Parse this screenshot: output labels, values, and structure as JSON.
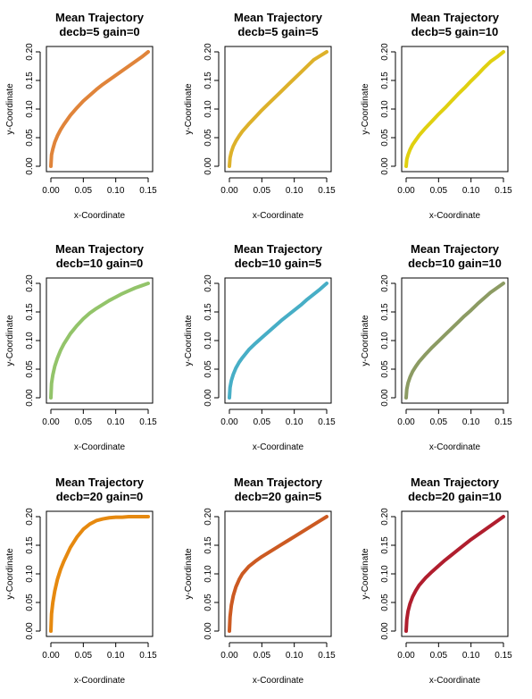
{
  "chart_data": [
    {
      "type": "line",
      "title_line1": "Mean Trajectory",
      "title_line2": "decb=5 gain=0",
      "xlabel": "x-Coordinate",
      "ylabel": "y-Coordinate",
      "xlim": [
        0,
        0.15
      ],
      "ylim": [
        0,
        0.2
      ],
      "xticks": [
        "0.00",
        "0.05",
        "0.10",
        "0.15"
      ],
      "yticks": [
        "0.00",
        "0.05",
        "0.10",
        "0.15",
        "0.20"
      ],
      "color": "#e0843a",
      "series": [
        {
          "x": [
            0,
            0.001,
            0.003,
            0.006,
            0.01,
            0.015,
            0.02,
            0.03,
            0.04,
            0.05,
            0.06,
            0.07,
            0.08,
            0.09,
            0.1,
            0.11,
            0.12,
            0.13,
            0.14,
            0.15
          ],
          "y": [
            0,
            0.02,
            0.03,
            0.042,
            0.053,
            0.064,
            0.073,
            0.089,
            0.102,
            0.114,
            0.124,
            0.134,
            0.143,
            0.151,
            0.159,
            0.167,
            0.175,
            0.183,
            0.191,
            0.2
          ]
        }
      ]
    },
    {
      "type": "line",
      "title_line1": "Mean Trajectory",
      "title_line2": "decb=5 gain=5",
      "xlabel": "x-Coordinate",
      "ylabel": "y-Coordinate",
      "xlim": [
        0,
        0.15
      ],
      "ylim": [
        0,
        0.2
      ],
      "xticks": [
        "0.00",
        "0.05",
        "0.10",
        "0.15"
      ],
      "yticks": [
        "0.00",
        "0.05",
        "0.10",
        "0.15",
        "0.20"
      ],
      "color": "#ddb12a",
      "series": [
        {
          "x": [
            0,
            0.001,
            0.003,
            0.006,
            0.01,
            0.015,
            0.02,
            0.03,
            0.04,
            0.05,
            0.06,
            0.07,
            0.08,
            0.09,
            0.1,
            0.11,
            0.12,
            0.13,
            0.14,
            0.15
          ],
          "y": [
            0,
            0.015,
            0.025,
            0.035,
            0.044,
            0.053,
            0.061,
            0.074,
            0.086,
            0.098,
            0.109,
            0.12,
            0.131,
            0.142,
            0.153,
            0.164,
            0.175,
            0.186,
            0.193,
            0.2
          ]
        }
      ]
    },
    {
      "type": "line",
      "title_line1": "Mean Trajectory",
      "title_line2": "decb=5 gain=10",
      "xlabel": "x-Coordinate",
      "ylabel": "y-Coordinate",
      "xlim": [
        0,
        0.15
      ],
      "ylim": [
        0,
        0.2
      ],
      "xticks": [
        "0.00",
        "0.05",
        "0.10",
        "0.15"
      ],
      "yticks": [
        "0.00",
        "0.05",
        "0.10",
        "0.15",
        "0.20"
      ],
      "color": "#e0d010",
      "series": [
        {
          "x": [
            0,
            0.001,
            0.003,
            0.006,
            0.01,
            0.015,
            0.02,
            0.03,
            0.04,
            0.05,
            0.06,
            0.07,
            0.08,
            0.09,
            0.1,
            0.11,
            0.12,
            0.13,
            0.14,
            0.15
          ],
          "y": [
            0,
            0.012,
            0.02,
            0.029,
            0.038,
            0.046,
            0.054,
            0.067,
            0.079,
            0.091,
            0.102,
            0.114,
            0.126,
            0.137,
            0.149,
            0.16,
            0.172,
            0.183,
            0.191,
            0.2
          ]
        }
      ]
    },
    {
      "type": "line",
      "title_line1": "Mean Trajectory",
      "title_line2": "decb=10 gain=0",
      "xlabel": "x-Coordinate",
      "ylabel": "y-Coordinate",
      "xlim": [
        0,
        0.15
      ],
      "ylim": [
        0,
        0.2
      ],
      "xticks": [
        "0.00",
        "0.05",
        "0.10",
        "0.15"
      ],
      "yticks": [
        "0.00",
        "0.05",
        "0.10",
        "0.15",
        "0.20"
      ],
      "color": "#93c46a",
      "series": [
        {
          "x": [
            0,
            0.001,
            0.003,
            0.006,
            0.01,
            0.015,
            0.02,
            0.03,
            0.04,
            0.05,
            0.06,
            0.07,
            0.08,
            0.09,
            0.1,
            0.11,
            0.12,
            0.13,
            0.14,
            0.15
          ],
          "y": [
            0,
            0.025,
            0.04,
            0.055,
            0.069,
            0.083,
            0.094,
            0.112,
            0.126,
            0.138,
            0.148,
            0.156,
            0.163,
            0.17,
            0.176,
            0.182,
            0.187,
            0.192,
            0.196,
            0.2
          ]
        }
      ]
    },
    {
      "type": "line",
      "title_line1": "Mean Trajectory",
      "title_line2": "decb=10 gain=5",
      "xlabel": "x-Coordinate",
      "ylabel": "y-Coordinate",
      "xlim": [
        0,
        0.15
      ],
      "ylim": [
        0,
        0.2
      ],
      "xticks": [
        "0.00",
        "0.05",
        "0.10",
        "0.15"
      ],
      "yticks": [
        "0.00",
        "0.05",
        "0.10",
        "0.15",
        "0.20"
      ],
      "color": "#47aec6",
      "series": [
        {
          "x": [
            0,
            0.001,
            0.003,
            0.006,
            0.01,
            0.015,
            0.02,
            0.03,
            0.04,
            0.05,
            0.06,
            0.07,
            0.08,
            0.09,
            0.1,
            0.11,
            0.12,
            0.13,
            0.14,
            0.15
          ],
          "y": [
            0,
            0.018,
            0.03,
            0.041,
            0.052,
            0.062,
            0.07,
            0.084,
            0.095,
            0.105,
            0.115,
            0.125,
            0.135,
            0.144,
            0.153,
            0.162,
            0.172,
            0.181,
            0.19,
            0.2
          ]
        }
      ]
    },
    {
      "type": "line",
      "title_line1": "Mean Trajectory",
      "title_line2": "decb=10 gain=10",
      "xlabel": "x-Coordinate",
      "ylabel": "y-Coordinate",
      "xlim": [
        0,
        0.15
      ],
      "ylim": [
        0,
        0.2
      ],
      "xticks": [
        "0.00",
        "0.05",
        "0.10",
        "0.15"
      ],
      "yticks": [
        "0.00",
        "0.05",
        "0.10",
        "0.15",
        "0.20"
      ],
      "color": "#8c9b63",
      "series": [
        {
          "x": [
            0,
            0.001,
            0.003,
            0.006,
            0.01,
            0.015,
            0.02,
            0.03,
            0.04,
            0.05,
            0.06,
            0.07,
            0.08,
            0.09,
            0.1,
            0.11,
            0.12,
            0.13,
            0.14,
            0.15
          ],
          "y": [
            0,
            0.015,
            0.026,
            0.036,
            0.046,
            0.055,
            0.063,
            0.076,
            0.088,
            0.099,
            0.11,
            0.121,
            0.132,
            0.143,
            0.153,
            0.164,
            0.174,
            0.184,
            0.192,
            0.2
          ]
        }
      ]
    },
    {
      "type": "line",
      "title_line1": "Mean Trajectory",
      "title_line2": "decb=20 gain=0",
      "xlabel": "x-Coordinate",
      "ylabel": "y-Coordinate",
      "xlim": [
        0,
        0.15
      ],
      "ylim": [
        0,
        0.2
      ],
      "xticks": [
        "0.00",
        "0.05",
        "0.10",
        "0.15"
      ],
      "yticks": [
        "0.00",
        "0.05",
        "0.10",
        "0.15",
        "0.20"
      ],
      "color": "#e6890f",
      "series": [
        {
          "x": [
            0,
            0.001,
            0.003,
            0.006,
            0.01,
            0.015,
            0.02,
            0.03,
            0.04,
            0.05,
            0.06,
            0.07,
            0.08,
            0.09,
            0.1,
            0.11,
            0.12,
            0.13,
            0.14,
            0.15
          ],
          "y": [
            0,
            0.03,
            0.05,
            0.07,
            0.09,
            0.108,
            0.122,
            0.146,
            0.164,
            0.178,
            0.187,
            0.193,
            0.196,
            0.198,
            0.199,
            0.199,
            0.2,
            0.2,
            0.2,
            0.2
          ]
        }
      ]
    },
    {
      "type": "line",
      "title_line1": "Mean Trajectory",
      "title_line2": "decb=20 gain=5",
      "xlabel": "x-Coordinate",
      "ylabel": "y-Coordinate",
      "xlim": [
        0,
        0.15
      ],
      "ylim": [
        0,
        0.2
      ],
      "xticks": [
        "0.00",
        "0.05",
        "0.10",
        "0.15"
      ],
      "yticks": [
        "0.00",
        "0.05",
        "0.10",
        "0.15",
        "0.20"
      ],
      "color": "#cc5a22",
      "series": [
        {
          "x": [
            0,
            0.001,
            0.003,
            0.006,
            0.01,
            0.015,
            0.02,
            0.03,
            0.04,
            0.05,
            0.06,
            0.07,
            0.08,
            0.09,
            0.1,
            0.11,
            0.12,
            0.13,
            0.14,
            0.15
          ],
          "y": [
            0,
            0.025,
            0.045,
            0.062,
            0.077,
            0.09,
            0.1,
            0.113,
            0.122,
            0.13,
            0.137,
            0.144,
            0.151,
            0.158,
            0.165,
            0.172,
            0.179,
            0.186,
            0.193,
            0.2
          ]
        }
      ]
    },
    {
      "type": "line",
      "title_line1": "Mean Trajectory",
      "title_line2": "decb=20 gain=10",
      "xlabel": "x-Coordinate",
      "ylabel": "y-Coordinate",
      "xlim": [
        0,
        0.15
      ],
      "ylim": [
        0,
        0.2
      ],
      "xticks": [
        "0.00",
        "0.05",
        "0.10",
        "0.15"
      ],
      "yticks": [
        "0.00",
        "0.05",
        "0.10",
        "0.15",
        "0.20"
      ],
      "color": "#b01e2e",
      "series": [
        {
          "x": [
            0,
            0.001,
            0.003,
            0.006,
            0.01,
            0.015,
            0.02,
            0.03,
            0.04,
            0.05,
            0.06,
            0.07,
            0.08,
            0.09,
            0.1,
            0.11,
            0.12,
            0.13,
            0.14,
            0.15
          ],
          "y": [
            0,
            0.02,
            0.035,
            0.048,
            0.06,
            0.071,
            0.08,
            0.093,
            0.104,
            0.114,
            0.124,
            0.133,
            0.142,
            0.151,
            0.16,
            0.168,
            0.176,
            0.184,
            0.192,
            0.2
          ]
        }
      ]
    }
  ]
}
